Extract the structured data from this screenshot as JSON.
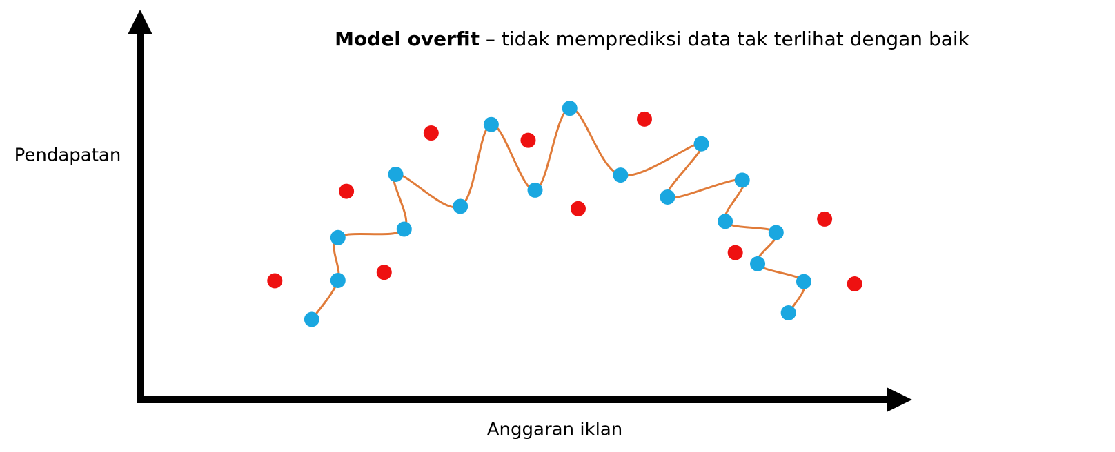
{
  "chart_data": {
    "type": "scatter",
    "title_bold": "Model overfit",
    "title": " – tidak memprediksi data tak terlihat dengan baik",
    "y_label": "Pendapatan",
    "x_label": "Anggaran iklan",
    "xlim": [
      0,
      100
    ],
    "ylim": [
      0,
      100
    ],
    "fit_color": "#e07b39",
    "series": [
      {
        "color": "#1aa7e0",
        "connected": true,
        "x": [
          22.3,
          25.7,
          25.7,
          34.3,
          33.2,
          41.6,
          45.6,
          51.3,
          55.8,
          62.4,
          72.9,
          68.5,
          78.2,
          76.0,
          82.6,
          80.2,
          86.2,
          84.2
        ],
        "values": [
          20.8,
          30.9,
          42.0,
          44.2,
          58.4,
          50.1,
          71.3,
          54.3,
          75.5,
          58.2,
          66.3,
          52.5,
          56.9,
          46.2,
          43.3,
          35.2,
          30.6,
          22.5
        ]
      },
      {
        "color": "#ee1111",
        "connected": false,
        "x": [
          17.5,
          26.8,
          31.7,
          37.8,
          50.4,
          56.9,
          65.5,
          77.3,
          88.9,
          92.8
        ],
        "values": [
          30.8,
          54.0,
          33.0,
          69.1,
          67.2,
          49.5,
          72.7,
          38.1,
          46.8,
          30.0
        ]
      }
    ]
  }
}
